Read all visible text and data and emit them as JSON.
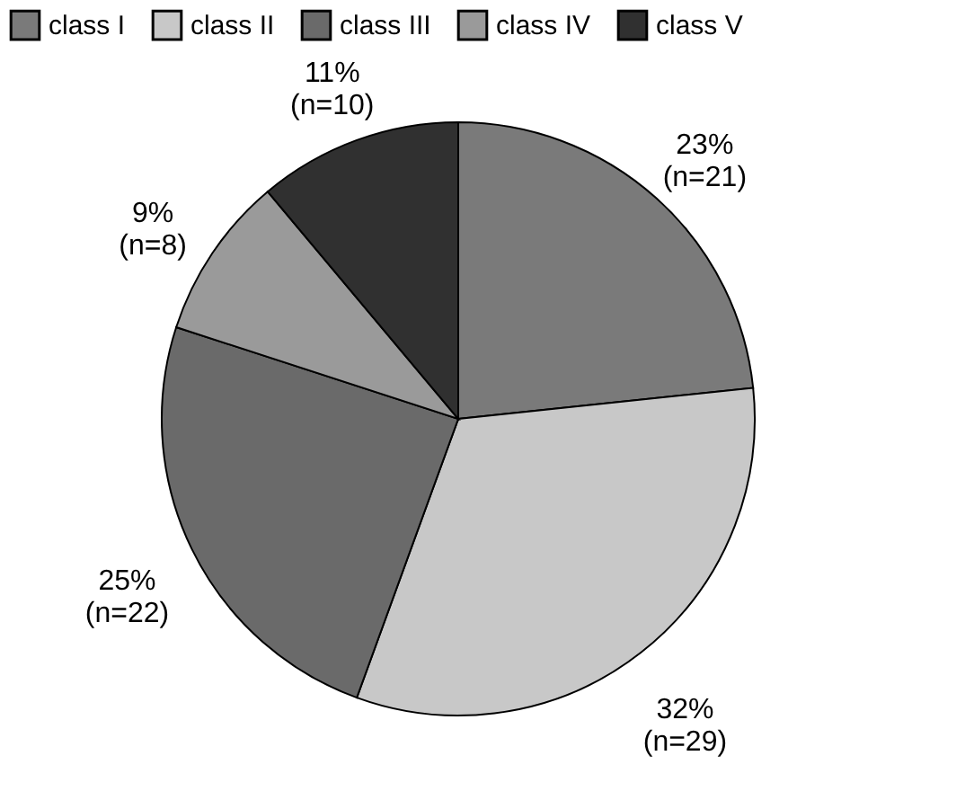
{
  "chart_data": {
    "type": "pie",
    "categories": [
      "class I",
      "class II",
      "class III",
      "class IV",
      "class V"
    ],
    "values": [
      21,
      29,
      22,
      8,
      10
    ],
    "value_labels": [
      "23% (n=21)",
      "32% (n=29)",
      "25% (n=22)",
      "9% (n=8)",
      "11% (n=10)"
    ],
    "colors": [
      "#7a7a7a",
      "#c8c8c8",
      "#6a6a6a",
      "#9a9a9a",
      "#303030"
    ],
    "legend": "top"
  }
}
